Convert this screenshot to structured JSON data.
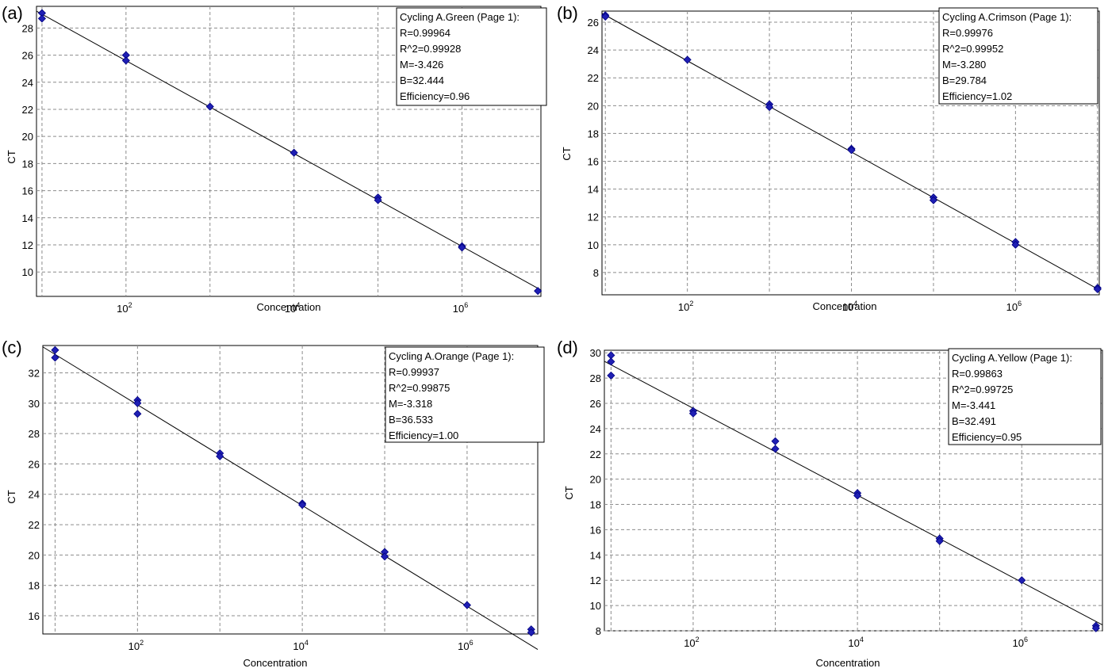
{
  "chart_data": [
    {
      "type": "scatter",
      "panel": "(a)",
      "xlabel": "Concentration",
      "ylabel": "CT",
      "x_scale": "log",
      "x_ticks": [
        {
          "value": 100,
          "base": "10",
          "exp": "2"
        },
        {
          "value": 10000,
          "base": "10",
          "exp": "4"
        },
        {
          "value": 1000000,
          "base": "10",
          "exp": "6"
        }
      ],
      "xlim": [
        8.6,
        8700000
      ],
      "ylim": [
        8.2,
        29.6
      ],
      "y_ticks": [
        10,
        12,
        14,
        16,
        18,
        20,
        22,
        24,
        26,
        28
      ],
      "grid": true,
      "legend_position": "top-right",
      "legend": [
        "Cycling A.Green (Page 1):",
        "R=0.99964",
        "R^2=0.99928",
        "M=-3.426",
        "B=32.444",
        "Efficiency=0.96"
      ],
      "fit": {
        "slope": -3.426,
        "intercept": 32.444
      },
      "point_color": "#1f1fb4",
      "points": [
        {
          "x": 10,
          "y": 29.1
        },
        {
          "x": 10,
          "y": 28.7
        },
        {
          "x": 100,
          "y": 26.0
        },
        {
          "x": 100,
          "y": 25.6
        },
        {
          "x": 1000,
          "y": 22.2
        },
        {
          "x": 10000,
          "y": 18.8
        },
        {
          "x": 100000,
          "y": 15.5
        },
        {
          "x": 100000,
          "y": 15.3
        },
        {
          "x": 1000000,
          "y": 11.9
        },
        {
          "x": 1000000,
          "y": 11.8
        },
        {
          "x": 8000000,
          "y": 8.6
        }
      ]
    },
    {
      "type": "scatter",
      "panel": "(b)",
      "xlabel": "Concentration",
      "ylabel": "CT",
      "x_scale": "log",
      "x_ticks": [
        {
          "value": 100,
          "base": "10",
          "exp": "2"
        },
        {
          "value": 10000,
          "base": "10",
          "exp": "4"
        },
        {
          "value": 1000000,
          "base": "10",
          "exp": "6"
        }
      ],
      "xlim": [
        9.1,
        10500000
      ],
      "ylim": [
        6.4,
        26.8
      ],
      "y_ticks": [
        8,
        10,
        12,
        14,
        16,
        18,
        20,
        22,
        24,
        26
      ],
      "grid": true,
      "legend_position": "top-right",
      "legend": [
        "Cycling A.Crimson (Page 1):",
        "R=0.99976",
        "R^2=0.99952",
        "M=-3.280",
        "B=29.784",
        "Efficiency=1.02"
      ],
      "fit": {
        "slope": -3.28,
        "intercept": 29.784
      },
      "point_color": "#1f1fb4",
      "points": [
        {
          "x": 10,
          "y": 26.5
        },
        {
          "x": 10,
          "y": 26.4
        },
        {
          "x": 100,
          "y": 23.3
        },
        {
          "x": 1000,
          "y": 20.1
        },
        {
          "x": 1000,
          "y": 19.9
        },
        {
          "x": 10000,
          "y": 16.9
        },
        {
          "x": 10000,
          "y": 16.8
        },
        {
          "x": 100000,
          "y": 13.4
        },
        {
          "x": 100000,
          "y": 13.2
        },
        {
          "x": 1000000,
          "y": 10.2
        },
        {
          "x": 1000000,
          "y": 10.0
        },
        {
          "x": 10000000,
          "y": 6.9
        },
        {
          "x": 10000000,
          "y": 6.8
        }
      ]
    },
    {
      "type": "scatter",
      "panel": "(c)",
      "xlabel": "Concentration",
      "ylabel": "CT",
      "x_scale": "log",
      "x_ticks": [
        {
          "value": 100,
          "base": "10",
          "exp": "2"
        },
        {
          "value": 10000,
          "base": "10",
          "exp": "4"
        },
        {
          "value": 1000000,
          "base": "10",
          "exp": "6"
        }
      ],
      "xlim": [
        7.1,
        7200000
      ],
      "ylim": [
        14.8,
        33.8
      ],
      "y_ticks": [
        16,
        18,
        20,
        22,
        24,
        26,
        28,
        30,
        32
      ],
      "grid": true,
      "legend_position": "top-right",
      "legend": [
        "Cycling A.Orange (Page 1):",
        "R=0.99937",
        "R^2=0.99875",
        "M=-3.318",
        "B=36.533",
        "Efficiency=1.00"
      ],
      "fit": {
        "slope": -3.318,
        "intercept": 36.533
      },
      "point_color": "#1f1fb4",
      "points": [
        {
          "x": 10,
          "y": 33.5
        },
        {
          "x": 10,
          "y": 33.0
        },
        {
          "x": 100,
          "y": 30.2
        },
        {
          "x": 100,
          "y": 30.0
        },
        {
          "x": 100,
          "y": 29.3
        },
        {
          "x": 1000,
          "y": 26.7
        },
        {
          "x": 1000,
          "y": 26.5
        },
        {
          "x": 10000,
          "y": 23.4
        },
        {
          "x": 10000,
          "y": 23.3
        },
        {
          "x": 100000,
          "y": 20.2
        },
        {
          "x": 100000,
          "y": 19.9
        },
        {
          "x": 1000000,
          "y": 16.7
        },
        {
          "x": 6000000,
          "y": 15.1
        },
        {
          "x": 6000000,
          "y": 14.9
        }
      ]
    },
    {
      "type": "scatter",
      "panel": "(d)",
      "xlabel": "Concentration",
      "ylabel": "CT",
      "x_scale": "log",
      "x_ticks": [
        {
          "value": 100,
          "base": "10",
          "exp": "2"
        },
        {
          "value": 10000,
          "base": "10",
          "exp": "4"
        },
        {
          "value": 1000000,
          "base": "10",
          "exp": "6"
        }
      ],
      "xlim": [
        8.3,
        9600000
      ],
      "ylim": [
        8.0,
        30.2
      ],
      "y_ticks": [
        8,
        10,
        12,
        14,
        16,
        18,
        20,
        22,
        24,
        26,
        28,
        30
      ],
      "grid": true,
      "legend_position": "top-right",
      "legend": [
        "Cycling A.Yellow (Page 1):",
        "R=0.99863",
        "R^2=0.99725",
        "M=-3.441",
        "B=32.491",
        "Efficiency=0.95"
      ],
      "fit": {
        "slope": -3.441,
        "intercept": 32.491
      },
      "point_color": "#1f1fb4",
      "points": [
        {
          "x": 10,
          "y": 29.8
        },
        {
          "x": 10,
          "y": 29.3
        },
        {
          "x": 10,
          "y": 28.2
        },
        {
          "x": 100,
          "y": 25.4
        },
        {
          "x": 100,
          "y": 25.2
        },
        {
          "x": 1000,
          "y": 23.0
        },
        {
          "x": 1000,
          "y": 22.4
        },
        {
          "x": 10000,
          "y": 18.9
        },
        {
          "x": 10000,
          "y": 18.7
        },
        {
          "x": 100000,
          "y": 15.3
        },
        {
          "x": 100000,
          "y": 15.1
        },
        {
          "x": 1000000,
          "y": 12.0
        },
        {
          "x": 8000000,
          "y": 8.4
        },
        {
          "x": 8000000,
          "y": 8.2
        }
      ]
    }
  ]
}
